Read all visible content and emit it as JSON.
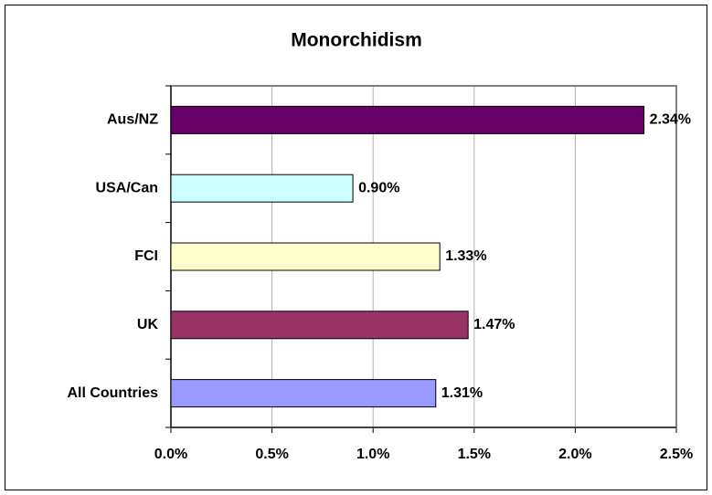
{
  "chart_data": {
    "type": "hbar",
    "title": "Monorchidism",
    "categories": [
      "Aus/NZ",
      "USA/Can",
      "FCI",
      "UK",
      "All Countries"
    ],
    "values": [
      2.34,
      0.9,
      1.33,
      1.47,
      1.31
    ],
    "value_labels": [
      "2.34%",
      "0.90%",
      "1.33%",
      "1.47%",
      "1.31%"
    ],
    "colors": [
      "#660066",
      "#ccffff",
      "#ffffcc",
      "#993366",
      "#9999ff"
    ],
    "xlim": [
      0,
      2.5
    ],
    "xticks": [
      {
        "value": 0,
        "label": "0.0%"
      },
      {
        "value": 0.5,
        "label": "0.5%"
      },
      {
        "value": 1,
        "label": "1.0%"
      },
      {
        "value": 1.5,
        "label": "1.5%"
      },
      {
        "value": 2,
        "label": "2.0%"
      },
      {
        "value": 2.5,
        "label": "2.5%"
      }
    ],
    "grid": true
  }
}
